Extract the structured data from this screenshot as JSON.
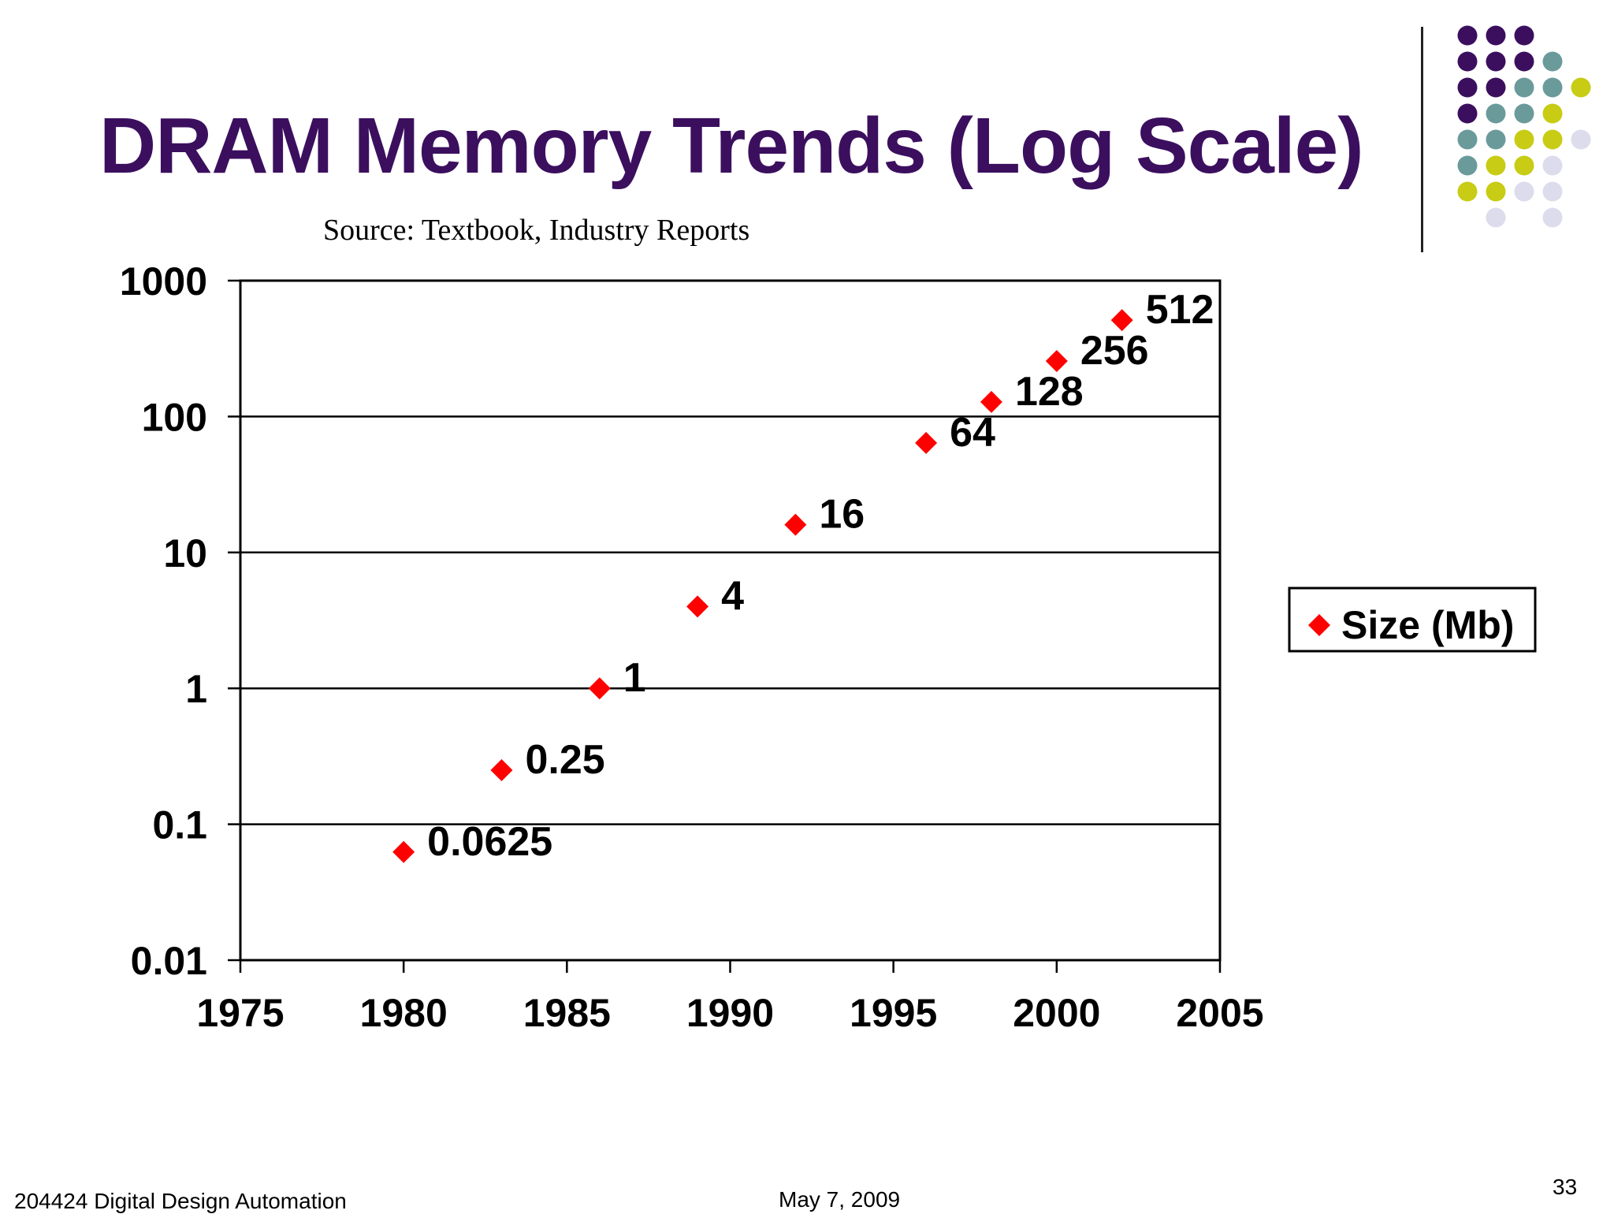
{
  "slide": {
    "title": "DRAM Memory Trends (Log Scale)",
    "source": "Source: Textbook, Industry Reports",
    "footer_left": "204424 Digital Design Automation",
    "footer_center": "May 7, 2009",
    "page_number": "33"
  },
  "decoration": {
    "dot_grid": [
      [
        "#3b0f5e",
        "#3b0f5e",
        "#3b0f5e",
        null,
        null
      ],
      [
        "#3b0f5e",
        "#3b0f5e",
        "#3b0f5e",
        "#6b9a9b",
        null
      ],
      [
        "#3b0f5e",
        "#3b0f5e",
        "#6b9a9b",
        "#6b9a9b",
        "#c8cc14"
      ],
      [
        "#3b0f5e",
        "#6b9a9b",
        "#6b9a9b",
        "#c8cc14",
        null
      ],
      [
        "#6b9a9b",
        "#6b9a9b",
        "#c8cc14",
        "#c8cc14",
        "#dcdcec"
      ],
      [
        "#6b9a9b",
        "#c8cc14",
        "#c8cc14",
        "#dcdcec",
        null
      ],
      [
        "#c8cc14",
        "#c8cc14",
        "#dcdcec",
        "#dcdcec",
        null
      ],
      [
        null,
        "#dcdcec",
        null,
        "#dcdcec",
        null
      ]
    ]
  },
  "chart_data": {
    "type": "scatter",
    "title": "",
    "xlabel": "",
    "ylabel": "",
    "x_scale": "linear",
    "y_scale": "log",
    "xlim": [
      1975,
      2005
    ],
    "ylim": [
      0.01,
      1000
    ],
    "x_ticks": [
      "1975",
      "1980",
      "1985",
      "1990",
      "1995",
      "2000",
      "2005"
    ],
    "y_ticks": [
      "1000",
      "100",
      "10",
      "1",
      "0.1",
      "0.01"
    ],
    "y_tick_values": [
      1000,
      100,
      10,
      1,
      0.1,
      0.01
    ],
    "x_tick_values": [
      1975,
      1980,
      1985,
      1990,
      1995,
      2000,
      2005
    ],
    "grid": "horizontal",
    "marker": "diamond",
    "marker_color": "#ff0000",
    "legend_position": "right",
    "series": [
      {
        "name": "Size (Mb)",
        "x": [
          1980,
          1983,
          1986,
          1989,
          1992,
          1996,
          1998,
          2000,
          2002
        ],
        "y": [
          0.0625,
          0.25,
          1,
          4,
          16,
          64,
          128,
          256,
          512
        ],
        "labels": [
          "0.0625",
          "0.25",
          "1",
          "4",
          "16",
          "64",
          "128",
          "256",
          "512"
        ]
      }
    ]
  }
}
